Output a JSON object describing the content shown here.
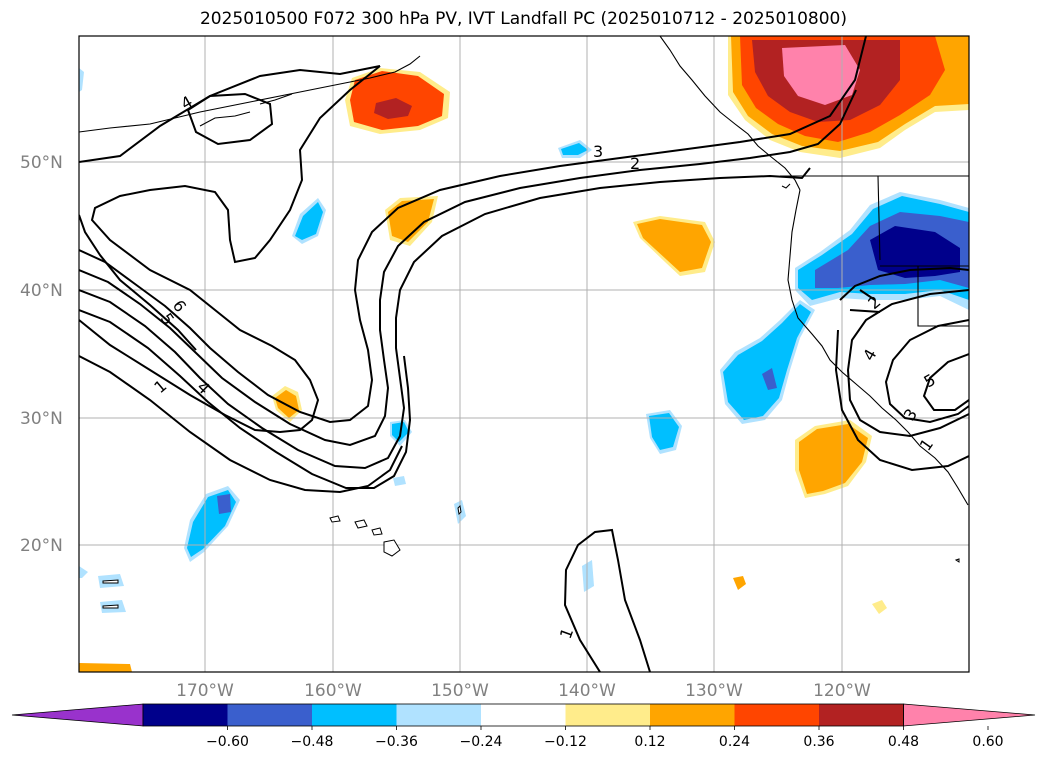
{
  "title": "2025010500 F072 300 hPa PV, IVT Landfall PC (2025010712 - 2025010800)",
  "lat_labels": [
    "50°N",
    "40°N",
    "30°N",
    "20°N"
  ],
  "lon_labels": [
    "170°W",
    "160°W",
    "150°W",
    "140°W",
    "130°W",
    "120°W"
  ],
  "colorbar": {
    "ticks": [
      "−0.60",
      "−0.48",
      "−0.36",
      "−0.24",
      "−0.12",
      "0.12",
      "0.24",
      "0.36",
      "0.48",
      "0.60"
    ],
    "colors": [
      "#9932cc",
      "#00008b",
      "#3a5fcd",
      "#00bfff",
      "#b0e2ff",
      "#ffffff",
      "#ffec8b",
      "#ffa500",
      "#ff4500",
      "#b22222",
      "#ff82ab"
    ]
  },
  "contour_labels": [
    "4",
    "3",
    "2",
    "5",
    "6",
    "4",
    "1",
    "2",
    "4",
    "5",
    "3",
    "1",
    "1"
  ]
}
